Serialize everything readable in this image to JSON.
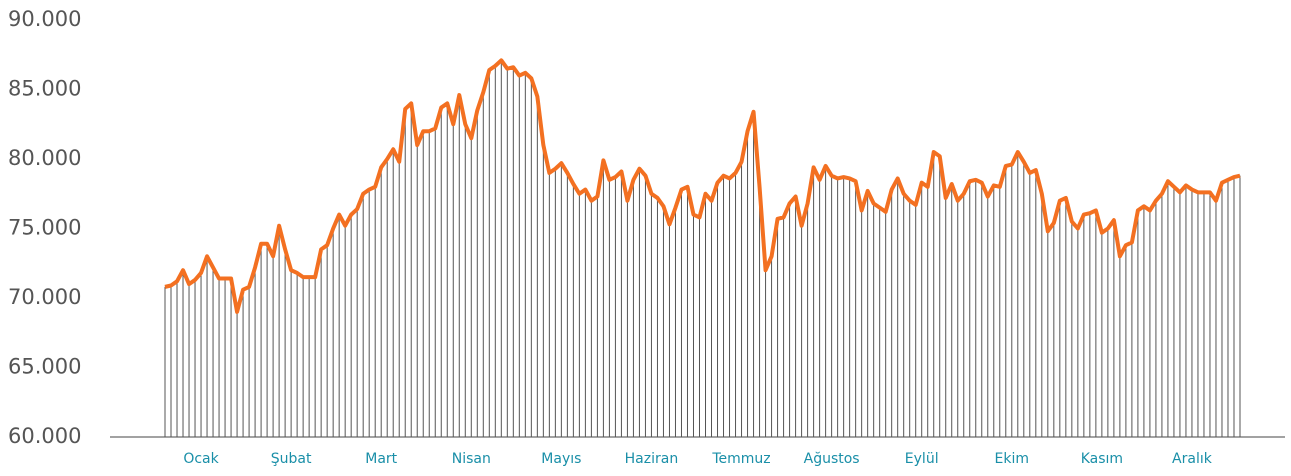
{
  "chart_data": {
    "type": "line",
    "categories": [
      null,
      null,
      null,
      null,
      null,
      null,
      "Ocak",
      null,
      null,
      null,
      null,
      null,
      null,
      null,
      null,
      null,
      null,
      null,
      null,
      null,
      null,
      "Şubat",
      null,
      null,
      null,
      null,
      null,
      null,
      null,
      null,
      null,
      null,
      null,
      null,
      null,
      null,
      "Mart",
      null,
      null,
      null,
      null,
      null,
      null,
      null,
      null,
      null,
      null,
      null,
      null,
      null,
      null,
      "Nisan",
      null,
      null,
      null,
      null,
      null,
      null,
      null,
      null,
      null,
      null,
      null,
      null,
      null,
      null,
      "Mayıs",
      null,
      null,
      null,
      null,
      null,
      null,
      null,
      null,
      null,
      null,
      null,
      null,
      null,
      null,
      "Haziran",
      null,
      null,
      null,
      null,
      null,
      null,
      null,
      null,
      null,
      null,
      null,
      null,
      null,
      null,
      "Temmuz",
      null,
      null,
      null,
      null,
      null,
      null,
      null,
      null,
      null,
      null,
      null,
      null,
      null,
      null,
      "Ağustos",
      null,
      null,
      null,
      null,
      null,
      null,
      null,
      null,
      null,
      null,
      null,
      null,
      null,
      null,
      "Eylül",
      null,
      null,
      null,
      null,
      null,
      null,
      null,
      null,
      null,
      null,
      null,
      null,
      null,
      null,
      "Ekim",
      null,
      null,
      null,
      null,
      null,
      null,
      null,
      null,
      null,
      null,
      null,
      null,
      null,
      null,
      "Kasım",
      null,
      null,
      null,
      null,
      null,
      null,
      null,
      null,
      null,
      null,
      null,
      null,
      null,
      null,
      "Aralık",
      null,
      null,
      null,
      null,
      null,
      null,
      null,
      null
    ],
    "series": [
      {
        "color": "#f37021",
        "drop_line_color": "#555555",
        "values": [
          70800,
          70900,
          71200,
          72000,
          71000,
          71300,
          71800,
          73000,
          72200,
          71400,
          71400,
          71400,
          69000,
          70600,
          70800,
          72200,
          73900,
          73900,
          73000,
          75200,
          73500,
          72000,
          71800,
          71500,
          71500,
          71500,
          73500,
          73800,
          75000,
          76000,
          75200,
          76000,
          76400,
          77500,
          77800,
          78000,
          79400,
          80000,
          80700,
          79800,
          83600,
          84000,
          81000,
          82000,
          82000,
          82200,
          83700,
          84000,
          82500,
          84600,
          82500,
          81500,
          83500,
          84800,
          86400,
          86700,
          87100,
          86500,
          86600,
          86000,
          86200,
          85800,
          84500,
          81000,
          79000,
          79300,
          79700,
          79000,
          78200,
          77500,
          77800,
          77000,
          77300,
          79900,
          78500,
          78700,
          79100,
          77000,
          78500,
          79300,
          78800,
          77500,
          77200,
          76600,
          75300,
          76500,
          77800,
          78000,
          76000,
          75800,
          77500,
          77000,
          78300,
          78800,
          78600,
          79000,
          79800,
          82000,
          83400,
          78000,
          72000,
          73000,
          75700,
          75800,
          76800,
          77300,
          75200,
          76800,
          79400,
          78500,
          79500,
          78800,
          78600,
          78700,
          78600,
          78400,
          76300,
          77700,
          76800,
          76500,
          76200,
          77800,
          78600,
          77500,
          77000,
          76700,
          78300,
          78000,
          80500,
          80200,
          77200,
          78200,
          77000,
          77500,
          78400,
          78500,
          78300,
          77300,
          78100,
          78000,
          79500,
          79600,
          80500,
          79800,
          79000,
          79200,
          77500,
          74800,
          75400,
          77000,
          77200,
          75500,
          75000,
          76000,
          76100,
          76300,
          74700,
          75000,
          75600,
          73000,
          73800,
          74000,
          76300,
          76600,
          76300,
          77000,
          77500,
          78400,
          78000,
          77600,
          78100,
          77800,
          77600,
          77600,
          77600,
          77000,
          78300,
          78500,
          78700,
          78800
        ]
      }
    ],
    "ylim": [
      60000,
      90000
    ],
    "yticks": [
      {
        "value": 60000,
        "label": "60.000"
      },
      {
        "value": 65000,
        "label": "65.000"
      },
      {
        "value": 70000,
        "label": "70.000"
      },
      {
        "value": 75000,
        "label": "75.000"
      },
      {
        "value": 80000,
        "label": "80.000"
      },
      {
        "value": 85000,
        "label": "85.000"
      },
      {
        "value": 90000,
        "label": "90.000"
      }
    ],
    "grid": false
  }
}
